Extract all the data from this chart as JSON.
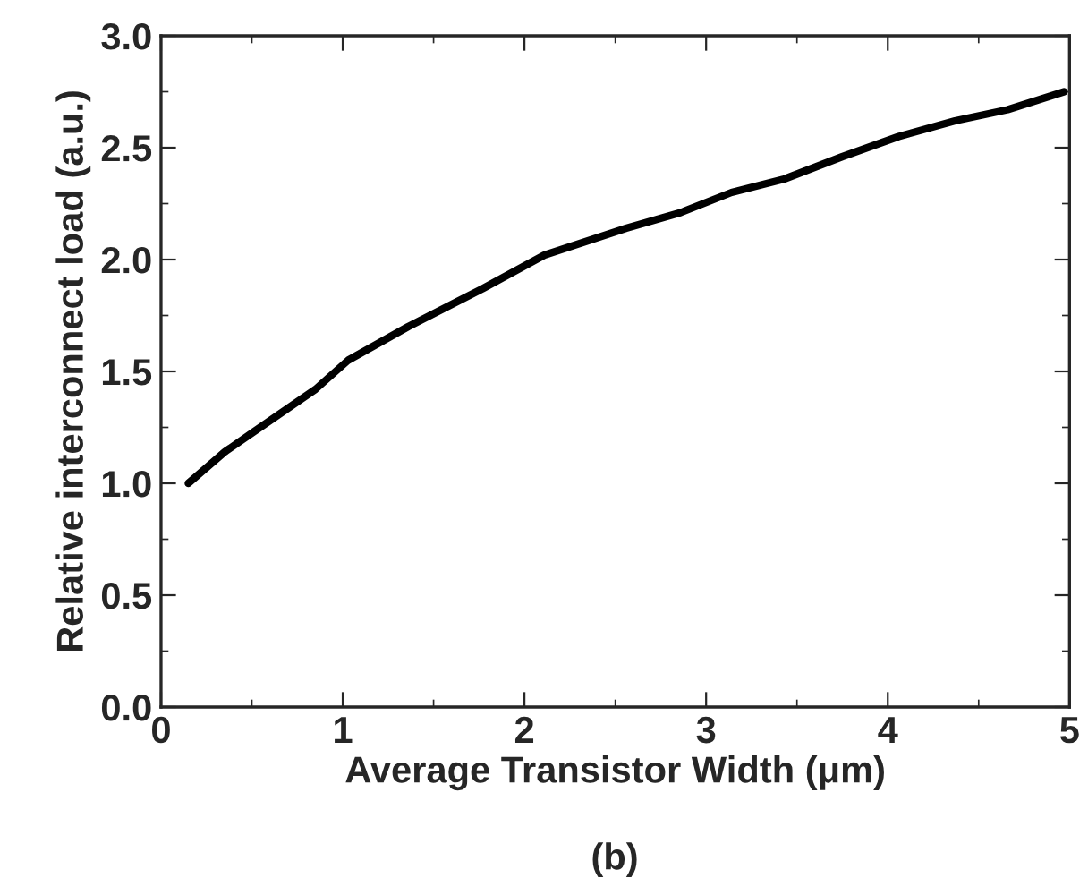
{
  "chart_data": {
    "type": "line",
    "xlabel": "Average Transistor Width (μm)",
    "ylabel": "Relative interconnect load (a.u.)",
    "annotations": [
      "(b)"
    ],
    "x": [
      0.15,
      0.35,
      0.51,
      0.85,
      1.03,
      1.36,
      1.77,
      2.11,
      2.56,
      2.86,
      3.14,
      3.43,
      3.75,
      4.06,
      4.37,
      4.66,
      4.97
    ],
    "series": [
      {
        "color": "#000000",
        "values": [
          1.0,
          1.14,
          1.23,
          1.42,
          1.55,
          1.7,
          1.87,
          2.02,
          2.14,
          2.21,
          2.3,
          2.36,
          2.46,
          2.55,
          2.62,
          2.67,
          2.75
        ]
      }
    ],
    "xlim": [
      0,
      5
    ],
    "xticks": [
      0,
      1,
      2,
      3,
      4,
      5
    ],
    "ylim": [
      0,
      3
    ],
    "yticks": [
      {
        "value": 0,
        "label": "0.0"
      },
      {
        "value": 0.5,
        "label": "0.5"
      },
      {
        "value": 1,
        "label": "1.0"
      },
      {
        "value": 1.5,
        "label": "1.5"
      },
      {
        "value": 2,
        "label": "2.0"
      },
      {
        "value": 2.5,
        "label": "2.5"
      },
      {
        "value": 3,
        "label": "3.0"
      }
    ],
    "grid": false,
    "legend": false,
    "marker": "none",
    "line_style": "solid"
  }
}
